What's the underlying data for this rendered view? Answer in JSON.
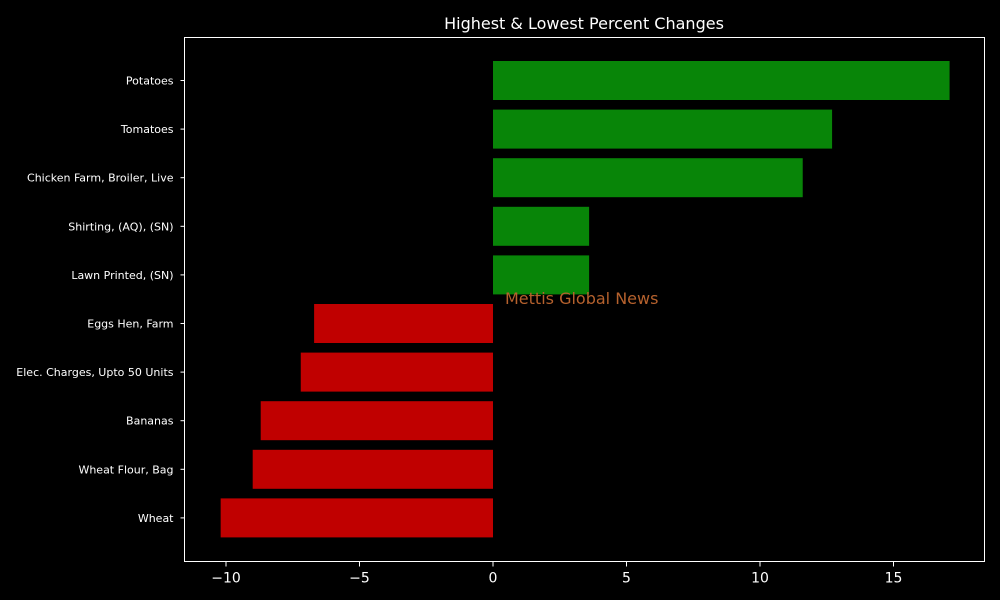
{
  "chart_data": {
    "type": "bar",
    "orientation": "horizontal",
    "title": "Highest & Lowest Percent Changes",
    "xlabel": "",
    "ylabel": "",
    "xlim": [
      -11.5,
      18.5
    ],
    "xticks": [
      -10,
      -5,
      0,
      5,
      10,
      15
    ],
    "grid": false,
    "categories": [
      "Potatoes",
      "Tomatoes",
      "Chicken Farm, Broiler, Live",
      "Shirting, (AQ), (SN)",
      "Lawn Printed, (SN)",
      "Eggs Hen, Farm",
      "Elec. Charges, Upto 50 Units",
      "Bananas",
      "Wheat Flour, Bag",
      "Wheat"
    ],
    "values": [
      17.1,
      12.7,
      11.6,
      3.6,
      3.6,
      -6.7,
      -7.2,
      -8.7,
      -9.0,
      -10.2
    ],
    "watermark": "Mettis Global News",
    "colors": {
      "background": "#000000",
      "positive": "#088508",
      "negative": "#c00000",
      "text": "#ffffff",
      "watermark": "#b5612d"
    }
  }
}
